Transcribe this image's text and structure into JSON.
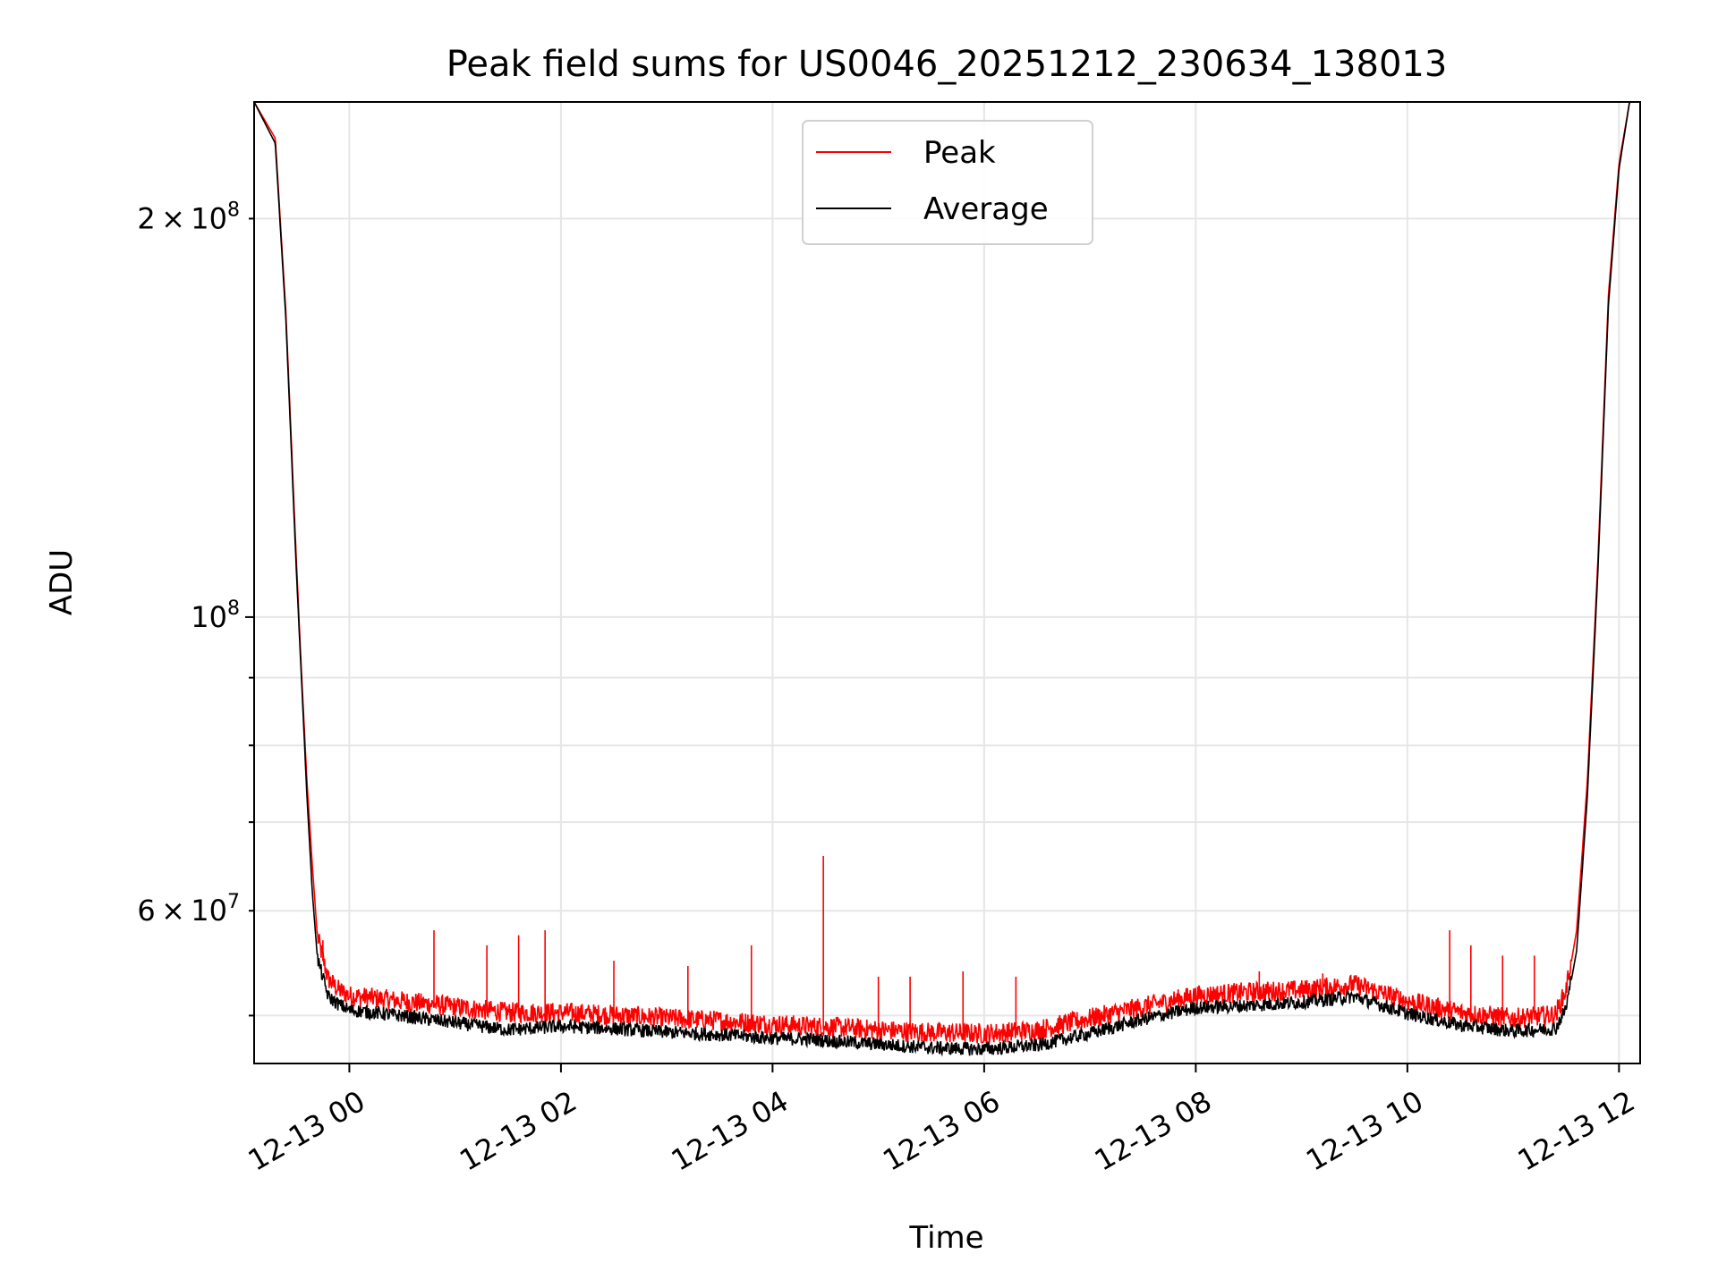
{
  "chart_data": {
    "type": "line",
    "title": "Peak field sums for US0046_20251212_230634_138013",
    "xlabel": "Time",
    "ylabel": "ADU",
    "yscale": "log",
    "ylim": [
      46000000,
      245000000
    ],
    "xlim_hours": [
      -0.9,
      12.2
    ],
    "grid": true,
    "legend_position": "upper center",
    "x_ticks": [
      {
        "label": "12-13 00",
        "hour": 0
      },
      {
        "label": "12-13 02",
        "hour": 2
      },
      {
        "label": "12-13 04",
        "hour": 4
      },
      {
        "label": "12-13 06",
        "hour": 6
      },
      {
        "label": "12-13 08",
        "hour": 8
      },
      {
        "label": "12-13 10",
        "hour": 10
      },
      {
        "label": "12-13 12",
        "hour": 12
      }
    ],
    "y_ticks_major": [
      {
        "value": 100000000,
        "base": "10",
        "exp": "8",
        "mantissa": ""
      }
    ],
    "y_ticks_minor_labeled": [
      {
        "value": 60000000,
        "mantissa": "6",
        "base": "10",
        "exp": "7"
      },
      {
        "value": 200000000,
        "mantissa": "2",
        "base": "10",
        "exp": "8"
      }
    ],
    "y_ticks_minor": [
      50000000,
      70000000,
      80000000,
      90000000
    ],
    "times_symbol": "×",
    "series": [
      {
        "name": "Peak",
        "color": "#ff0000",
        "x_hours": [
          -0.9,
          -0.7,
          -0.6,
          -0.5,
          -0.45,
          -0.4,
          -0.35,
          -0.3,
          -0.2,
          -0.1,
          0.0,
          0.5,
          1.0,
          1.5,
          2.0,
          2.5,
          3.0,
          3.5,
          4.0,
          4.4,
          4.5,
          5.0,
          5.5,
          6.0,
          6.5,
          7.0,
          7.5,
          8.0,
          8.5,
          9.0,
          9.5,
          10.0,
          10.5,
          11.0,
          11.4,
          11.5,
          11.6,
          11.7,
          11.8,
          11.9,
          12.0,
          12.1
        ],
        "values": [
          245000000,
          230000000,
          170000000,
          110000000,
          90000000,
          75000000,
          65000000,
          57000000,
          53000000,
          52000000,
          51500000,
          51000000,
          50500000,
          50000000,
          50000000,
          49800000,
          49500000,
          49300000,
          49000000,
          48800000,
          48800000,
          48500000,
          48300000,
          48200000,
          48500000,
          49500000,
          50500000,
          51500000,
          51800000,
          52000000,
          52500000,
          51000000,
          50000000,
          49500000,
          49800000,
          52000000,
          58000000,
          75000000,
          110000000,
          175000000,
          220000000,
          245000000
        ]
      },
      {
        "name": "Average",
        "color": "#000000",
        "x_hours": [
          -0.9,
          -0.7,
          -0.6,
          -0.5,
          -0.45,
          -0.4,
          -0.35,
          -0.3,
          -0.2,
          -0.1,
          0.0,
          0.5,
          1.0,
          1.5,
          2.0,
          2.5,
          3.0,
          3.5,
          4.0,
          4.4,
          4.5,
          5.0,
          5.5,
          6.0,
          6.5,
          7.0,
          7.5,
          8.0,
          8.5,
          9.0,
          9.5,
          10.0,
          10.5,
          11.0,
          11.4,
          11.5,
          11.6,
          11.7,
          11.8,
          11.9,
          12.0,
          12.1
        ],
        "values": [
          245000000,
          228000000,
          168000000,
          108000000,
          89000000,
          73000000,
          62000000,
          55000000,
          51500000,
          50800000,
          50300000,
          49800000,
          49200000,
          48600000,
          48900000,
          48700000,
          48400000,
          48200000,
          47900000,
          47800000,
          47700000,
          47400000,
          47100000,
          47000000,
          47300000,
          48300000,
          49500000,
          50500000,
          50700000,
          51000000,
          51500000,
          50000000,
          49000000,
          48500000,
          48700000,
          50500000,
          56000000,
          73000000,
          108000000,
          172000000,
          218000000,
          245000000
        ]
      }
    ],
    "peak_spikes": [
      {
        "hour": -0.25,
        "value": 57000000
      },
      {
        "hour": 0.8,
        "value": 58000000
      },
      {
        "hour": 1.3,
        "value": 56500000
      },
      {
        "hour": 1.6,
        "value": 57500000
      },
      {
        "hour": 1.85,
        "value": 58000000
      },
      {
        "hour": 2.5,
        "value": 55000000
      },
      {
        "hour": 3.2,
        "value": 54500000
      },
      {
        "hour": 3.8,
        "value": 56500000
      },
      {
        "hour": 4.48,
        "value": 66000000
      },
      {
        "hour": 5.0,
        "value": 53500000
      },
      {
        "hour": 5.3,
        "value": 53500000
      },
      {
        "hour": 5.8,
        "value": 54000000
      },
      {
        "hour": 6.3,
        "value": 53500000
      },
      {
        "hour": 8.6,
        "value": 54000000
      },
      {
        "hour": 9.2,
        "value": 53800000
      },
      {
        "hour": 10.4,
        "value": 58000000
      },
      {
        "hour": 10.6,
        "value": 56500000
      },
      {
        "hour": 10.9,
        "value": 55500000
      },
      {
        "hour": 11.2,
        "value": 55500000
      }
    ]
  }
}
